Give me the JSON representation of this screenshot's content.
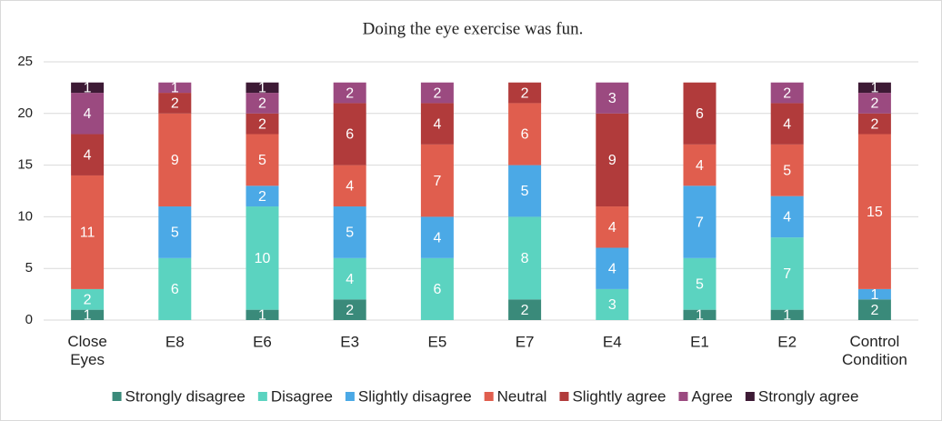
{
  "chart_data": {
    "type": "stacked_bar",
    "title": "Doing the eye exercise was fun.",
    "categories": [
      "Close Eyes",
      "E8",
      "E6",
      "E3",
      "E5",
      "E7",
      "E4",
      "E1",
      "E2",
      "Control Condition"
    ],
    "series": [
      {
        "name": "Strongly disagree",
        "color": "#3a8a7a",
        "values": [
          1,
          0,
          1,
          2,
          0,
          2,
          0,
          1,
          1,
          2
        ]
      },
      {
        "name": "Disagree",
        "color": "#5bd3c0",
        "values": [
          2,
          6,
          10,
          4,
          6,
          8,
          3,
          5,
          7,
          0
        ]
      },
      {
        "name": "Slightly disagree",
        "color": "#4ba9e6",
        "values": [
          0,
          5,
          2,
          5,
          4,
          5,
          4,
          7,
          4,
          1
        ]
      },
      {
        "name": "Neutral",
        "color": "#e05e4e",
        "values": [
          11,
          9,
          5,
          4,
          7,
          6,
          4,
          4,
          5,
          15
        ]
      },
      {
        "name": "Slightly agree",
        "color": "#b13b3b",
        "values": [
          4,
          2,
          2,
          6,
          4,
          2,
          9,
          6,
          4,
          2
        ]
      },
      {
        "name": "Agree",
        "color": "#9b4a80",
        "values": [
          4,
          1,
          2,
          2,
          2,
          0,
          3,
          0,
          2,
          2
        ]
      },
      {
        "name": "Strongly agree",
        "color": "#3d1a35",
        "values": [
          1,
          0,
          1,
          0,
          0,
          0,
          0,
          0,
          0,
          1
        ]
      }
    ],
    "ylim": [
      0,
      25
    ],
    "yticks": [
      0,
      5,
      10,
      15,
      20,
      25
    ],
    "grid": true,
    "legend": "bottom"
  }
}
